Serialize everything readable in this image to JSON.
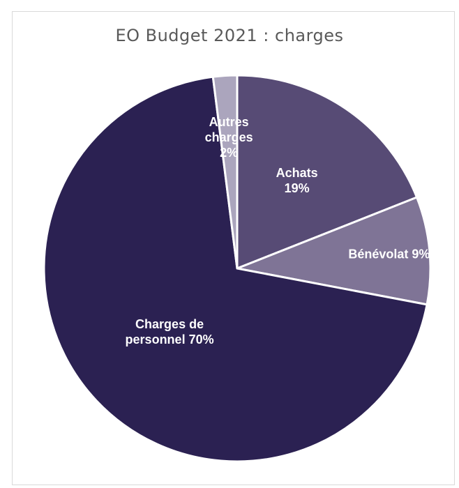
{
  "chart_data": {
    "type": "pie",
    "title": "EO Budget 2021 : charges",
    "categories": [
      "Achats",
      "Bénévolat",
      "Charges de personnel",
      "Autres charges"
    ],
    "values": [
      19,
      9,
      70,
      2
    ],
    "data_labels": [
      [
        "Achats",
        "19%"
      ],
      [
        "Bénévolat 9%"
      ],
      [
        "Charges de",
        "personnel 70%"
      ],
      [
        "Autres",
        "charges",
        "2%"
      ]
    ],
    "colors": [
      "#574b75",
      "#7f7496",
      "#2b2152",
      "#aba5bd"
    ],
    "start_angle_deg": 0,
    "direction": "clockwise"
  }
}
